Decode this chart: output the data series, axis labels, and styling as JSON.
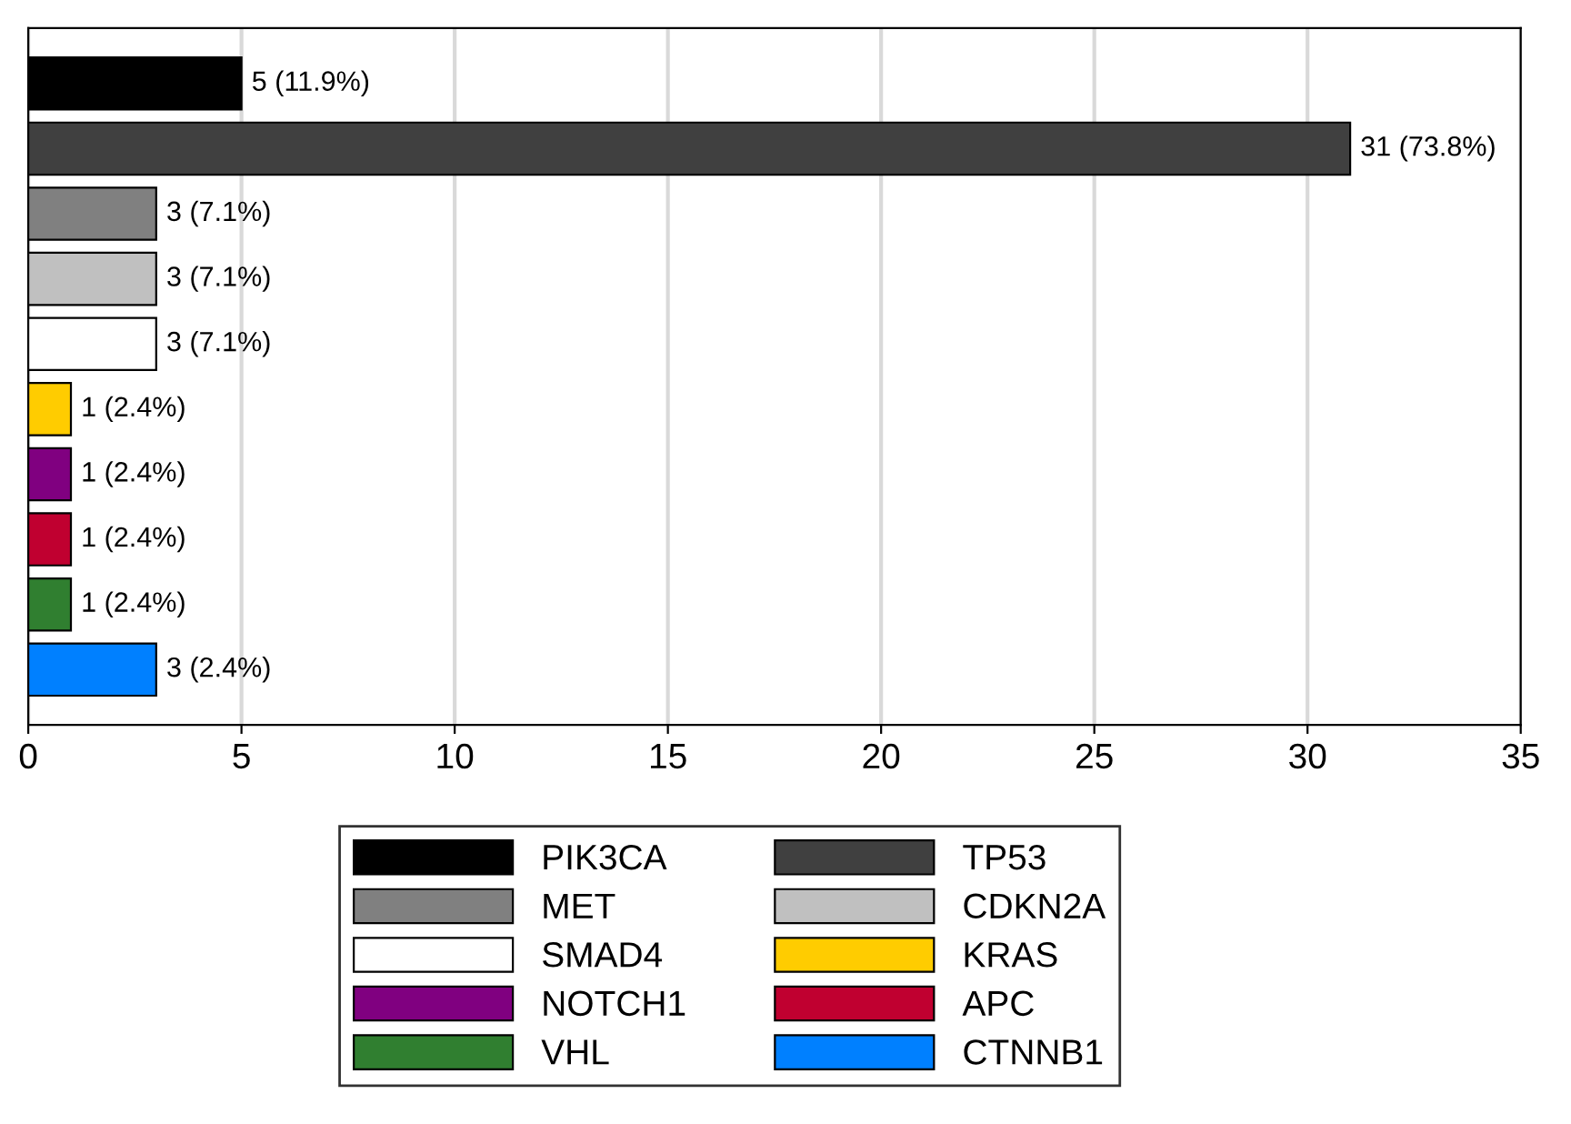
{
  "chart_data": {
    "type": "bar",
    "orientation": "horizontal",
    "categories": [
      null,
      null,
      null,
      null,
      null,
      null,
      null,
      null,
      null,
      null
    ],
    "series": [
      {
        "name": "PIK3CA",
        "color": "#000000",
        "values": [
          5,
          null,
          null,
          null,
          null,
          null,
          null,
          null,
          null,
          null
        ],
        "value_labels": [
          "5 (11.9%)",
          null,
          null,
          null,
          null,
          null,
          null,
          null,
          null,
          null
        ]
      },
      {
        "name": "TP53",
        "color": "#404040",
        "values": [
          null,
          31,
          null,
          null,
          null,
          null,
          null,
          null,
          null,
          null
        ],
        "value_labels": [
          null,
          "31 (73.8%)",
          null,
          null,
          null,
          null,
          null,
          null,
          null,
          null
        ]
      },
      {
        "name": "MET",
        "color": "#808080",
        "values": [
          null,
          null,
          3,
          null,
          null,
          null,
          null,
          null,
          null,
          null
        ],
        "value_labels": [
          null,
          null,
          "3 (7.1%)",
          null,
          null,
          null,
          null,
          null,
          null,
          null
        ]
      },
      {
        "name": "CDKN2A",
        "color": "#c0c0c0",
        "values": [
          null,
          null,
          null,
          3,
          null,
          null,
          null,
          null,
          null,
          null
        ],
        "value_labels": [
          null,
          null,
          null,
          "3 (7.1%)",
          null,
          null,
          null,
          null,
          null,
          null
        ]
      },
      {
        "name": "SMAD4",
        "color": "#ffffff",
        "values": [
          null,
          null,
          null,
          null,
          3,
          null,
          null,
          null,
          null,
          null
        ],
        "value_labels": [
          null,
          null,
          null,
          null,
          "3 (7.1%)",
          null,
          null,
          null,
          null,
          null
        ]
      },
      {
        "name": "KRAS",
        "color": "#ffcc00",
        "values": [
          null,
          null,
          null,
          null,
          null,
          1,
          null,
          null,
          null,
          null
        ],
        "value_labels": [
          null,
          null,
          null,
          null,
          null,
          "1 (2.4%)",
          null,
          null,
          null,
          null
        ]
      },
      {
        "name": "NOTCH1",
        "color": "#800080",
        "values": [
          null,
          null,
          null,
          null,
          null,
          null,
          1,
          null,
          null,
          null
        ],
        "value_labels": [
          null,
          null,
          null,
          null,
          null,
          null,
          "1 (2.4%)",
          null,
          null,
          null
        ]
      },
      {
        "name": "APC",
        "color": "#c00030",
        "values": [
          null,
          null,
          null,
          null,
          null,
          null,
          null,
          1,
          null,
          null
        ],
        "value_labels": [
          null,
          null,
          null,
          null,
          null,
          null,
          null,
          "1 (2.4%)",
          null,
          null
        ]
      },
      {
        "name": "VHL",
        "color": "#307f30",
        "values": [
          null,
          null,
          null,
          null,
          null,
          null,
          null,
          null,
          1,
          null
        ],
        "value_labels": [
          null,
          null,
          null,
          null,
          null,
          null,
          null,
          null,
          "1 (2.4%)",
          null
        ]
      },
      {
        "name": "CTNNB1",
        "color": "#0080ff",
        "values": [
          null,
          null,
          null,
          null,
          null,
          null,
          null,
          null,
          null,
          3
        ],
        "value_labels": [
          null,
          null,
          null,
          null,
          null,
          null,
          null,
          null,
          null,
          "3 (2.4%)"
        ]
      }
    ],
    "xlim": [
      0,
      35
    ],
    "xticks": [
      0,
      5,
      10,
      15,
      20,
      25,
      30,
      35
    ],
    "grid": "x",
    "legend": "bottom"
  }
}
